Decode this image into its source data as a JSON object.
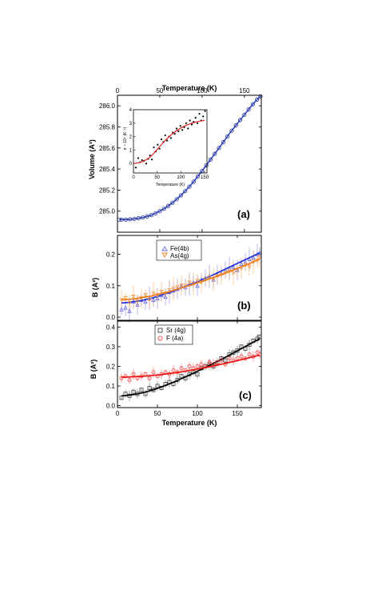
{
  "chart_data": [
    {
      "id": "a",
      "type": "scatter",
      "panel_label": "(a)",
      "xlabel": "Temperature (K)",
      "xaxis_position": "top",
      "ylabel": "Volume (A³)",
      "xlim": [
        0,
        170
      ],
      "ylim": [
        284.8,
        286.1
      ],
      "xticks": [
        0,
        50,
        100,
        150
      ],
      "yticks": [
        285.0,
        285.2,
        285.4,
        285.6,
        285.8,
        286.0
      ],
      "ytick_labels": [
        "285.0",
        "285.2",
        "285.4",
        "285.6",
        "285.8",
        "286.0"
      ],
      "series": [
        {
          "marker": "circle-open",
          "color": "#2b3a8c",
          "fit_color": "#3346c8",
          "x": [
            2,
            5,
            10,
            15,
            20,
            25,
            30,
            35,
            40,
            45,
            50,
            55,
            60,
            65,
            70,
            75,
            80,
            85,
            90,
            95,
            100,
            105,
            110,
            115,
            120,
            125,
            130,
            135,
            140,
            145,
            150,
            155,
            160,
            165,
            169
          ],
          "y": [
            284.92,
            284.92,
            284.92,
            284.923,
            284.927,
            284.933,
            284.94,
            284.95,
            284.963,
            284.98,
            285.0,
            285.023,
            285.05,
            285.08,
            285.113,
            285.15,
            285.19,
            285.233,
            285.28,
            285.33,
            285.382,
            285.435,
            285.49,
            285.545,
            285.6,
            285.655,
            285.71,
            285.764,
            285.815,
            285.865,
            285.915,
            285.965,
            286.015,
            286.06,
            286.09
          ]
        }
      ],
      "inset": {
        "xlabel": "Temperature (K)",
        "ylabel": "α⁻¹·10⁵ (K⁻¹)",
        "xlim": [
          0,
          155
        ],
        "ylim": [
          -0.7,
          4
        ],
        "xticks": [
          0,
          50,
          100,
          150
        ],
        "yticks": [
          0,
          1,
          2,
          3,
          4
        ],
        "points": {
          "x": [
            5,
            10,
            14,
            18,
            22,
            27,
            31,
            35,
            39,
            43,
            47,
            51,
            55,
            59,
            63,
            67,
            71,
            75,
            79,
            83,
            87,
            91,
            95,
            99,
            103,
            107,
            111,
            115,
            119,
            123,
            127,
            131,
            135,
            139,
            143,
            147,
            151
          ],
          "y": [
            -0.3,
            0.4,
            0.1,
            0.25,
            0.2,
            0.0,
            0.35,
            0.6,
            0.3,
            1.2,
            0.9,
            1.4,
            1.1,
            1.8,
            1.6,
            2.1,
            1.7,
            2.0,
            1.9,
            2.3,
            2.2,
            2.6,
            2.4,
            2.8,
            2.5,
            2.7,
            3.0,
            2.6,
            3.2,
            2.9,
            3.1,
            3.4,
            3.0,
            3.7,
            3.2,
            3.5,
            3.9
          ]
        },
        "fit": {
          "x": [
            0,
            10,
            20,
            30,
            40,
            50,
            60,
            70,
            80,
            90,
            100,
            110,
            120,
            130,
            140,
            150
          ],
          "y": [
            0.0,
            0.05,
            0.15,
            0.35,
            0.65,
            1.05,
            1.45,
            1.82,
            2.15,
            2.42,
            2.65,
            2.82,
            2.96,
            3.07,
            3.15,
            3.21
          ]
        }
      }
    },
    {
      "id": "b",
      "type": "scatter",
      "panel_label": "(b)",
      "xlim": [
        0,
        180
      ],
      "ylim": [
        -0.01,
        0.26
      ],
      "xticks": [
        0,
        50,
        100,
        150
      ],
      "yticks": [
        0.0,
        0.1,
        0.2
      ],
      "ytick_labels": [
        "0.0",
        "0.1",
        "0.2"
      ],
      "ylabel": "B (A²)",
      "legend_position": "top-left",
      "series": [
        {
          "name": "Fe(4b)",
          "marker": "triangle-up-open",
          "color": "#6a6ee6",
          "fit_color": "#2233dd",
          "x": [
            5,
            10,
            15,
            20,
            25,
            30,
            35,
            40,
            45,
            50,
            55,
            60,
            65,
            70,
            75,
            80,
            85,
            90,
            95,
            100,
            105,
            110,
            115,
            120,
            125,
            130,
            135,
            140,
            145,
            150,
            155,
            160,
            165,
            170,
            175,
            178
          ],
          "y": [
            0.025,
            0.03,
            0.02,
            0.05,
            0.04,
            0.055,
            0.05,
            0.06,
            0.055,
            0.06,
            0.07,
            0.065,
            0.08,
            0.085,
            0.09,
            0.1,
            0.095,
            0.105,
            0.11,
            0.1,
            0.12,
            0.125,
            0.13,
            0.12,
            0.135,
            0.14,
            0.15,
            0.155,
            0.16,
            0.15,
            0.17,
            0.175,
            0.185,
            0.19,
            0.2,
            0.205
          ],
          "fit_y": [
            0.045,
            0.046,
            0.047,
            0.049,
            0.051,
            0.053,
            0.056,
            0.059,
            0.062,
            0.066,
            0.07,
            0.074,
            0.078,
            0.083,
            0.088,
            0.093,
            0.098,
            0.103,
            0.108,
            0.113,
            0.118,
            0.124,
            0.129,
            0.135,
            0.141,
            0.147,
            0.153,
            0.159,
            0.165,
            0.171,
            0.177,
            0.183,
            0.189,
            0.195,
            0.201,
            0.205
          ]
        },
        {
          "name": "As(4g)",
          "marker": "triangle-down-open",
          "color": "#f5a04a",
          "fit_color": "#f07a18",
          "x": [
            5,
            10,
            15,
            20,
            25,
            30,
            35,
            40,
            45,
            50,
            55,
            60,
            65,
            70,
            75,
            80,
            85,
            90,
            95,
            100,
            105,
            110,
            115,
            120,
            125,
            130,
            135,
            140,
            145,
            150,
            155,
            160,
            165,
            170,
            175,
            178
          ],
          "y": [
            0.055,
            0.06,
            0.045,
            0.065,
            0.05,
            0.06,
            0.07,
            0.055,
            0.075,
            0.07,
            0.08,
            0.075,
            0.085,
            0.09,
            0.095,
            0.1,
            0.1,
            0.11,
            0.105,
            0.115,
            0.11,
            0.12,
            0.125,
            0.12,
            0.13,
            0.135,
            0.14,
            0.145,
            0.14,
            0.15,
            0.155,
            0.165,
            0.16,
            0.175,
            0.18,
            0.19
          ],
          "fit_y": [
            0.055,
            0.056,
            0.057,
            0.058,
            0.06,
            0.062,
            0.064,
            0.066,
            0.069,
            0.072,
            0.075,
            0.078,
            0.081,
            0.085,
            0.089,
            0.093,
            0.097,
            0.101,
            0.105,
            0.109,
            0.113,
            0.117,
            0.122,
            0.126,
            0.131,
            0.135,
            0.14,
            0.145,
            0.15,
            0.155,
            0.16,
            0.165,
            0.17,
            0.176,
            0.181,
            0.185
          ]
        }
      ]
    },
    {
      "id": "c",
      "type": "scatter",
      "panel_label": "(c)",
      "xlabel": "Temperature (K)",
      "ylabel": "B (A²)",
      "xlim": [
        0,
        180
      ],
      "ylim": [
        -0.01,
        0.43
      ],
      "xticks": [
        0,
        50,
        100,
        150
      ],
      "yticks": [
        0.0,
        0.1,
        0.2,
        0.3,
        0.4
      ],
      "ytick_labels": [
        "0.0",
        "0.1",
        "0.2",
        "0.3",
        "0.4"
      ],
      "legend_position": "top-left",
      "series": [
        {
          "name": "Sr (4g)",
          "marker": "square-open",
          "color": "#444444",
          "fit_color": "#000000",
          "x": [
            5,
            10,
            15,
            20,
            25,
            30,
            35,
            40,
            45,
            50,
            55,
            60,
            65,
            70,
            75,
            80,
            85,
            90,
            95,
            100,
            105,
            110,
            115,
            120,
            125,
            130,
            135,
            140,
            145,
            150,
            155,
            160,
            165,
            170,
            175,
            178
          ],
          "y": [
            0.04,
            0.06,
            0.05,
            0.07,
            0.06,
            0.08,
            0.06,
            0.09,
            0.08,
            0.1,
            0.09,
            0.11,
            0.12,
            0.11,
            0.13,
            0.15,
            0.14,
            0.16,
            0.17,
            0.16,
            0.19,
            0.2,
            0.21,
            0.2,
            0.22,
            0.24,
            0.23,
            0.26,
            0.27,
            0.28,
            0.3,
            0.29,
            0.31,
            0.33,
            0.34,
            0.35
          ],
          "fit_y": [
            0.05,
            0.051,
            0.053,
            0.056,
            0.06,
            0.064,
            0.069,
            0.075,
            0.081,
            0.088,
            0.095,
            0.103,
            0.111,
            0.119,
            0.128,
            0.137,
            0.146,
            0.156,
            0.165,
            0.175,
            0.185,
            0.195,
            0.205,
            0.215,
            0.225,
            0.236,
            0.246,
            0.257,
            0.268,
            0.279,
            0.29,
            0.301,
            0.312,
            0.323,
            0.334,
            0.34
          ]
        },
        {
          "name": "F (4a)",
          "marker": "circle-open",
          "color": "#ee4444",
          "fit_color": "#ee1111",
          "x": [
            5,
            10,
            15,
            20,
            25,
            30,
            35,
            40,
            45,
            50,
            55,
            60,
            65,
            70,
            75,
            80,
            85,
            90,
            95,
            100,
            105,
            110,
            115,
            120,
            125,
            130,
            135,
            140,
            145,
            150,
            155,
            160,
            165,
            170,
            175,
            178
          ],
          "y": [
            0.14,
            0.15,
            0.13,
            0.16,
            0.14,
            0.15,
            0.16,
            0.14,
            0.17,
            0.15,
            0.16,
            0.17,
            0.16,
            0.18,
            0.17,
            0.19,
            0.18,
            0.2,
            0.19,
            0.2,
            0.21,
            0.2,
            0.22,
            0.21,
            0.22,
            0.23,
            0.21,
            0.24,
            0.23,
            0.24,
            0.25,
            0.24,
            0.26,
            0.25,
            0.27,
            0.26
          ],
          "fit_y": [
            0.145,
            0.145,
            0.146,
            0.147,
            0.148,
            0.149,
            0.15,
            0.152,
            0.154,
            0.156,
            0.158,
            0.161,
            0.163,
            0.166,
            0.169,
            0.172,
            0.175,
            0.179,
            0.182,
            0.186,
            0.19,
            0.194,
            0.198,
            0.202,
            0.206,
            0.211,
            0.215,
            0.22,
            0.224,
            0.229,
            0.234,
            0.239,
            0.244,
            0.249,
            0.254,
            0.257
          ]
        }
      ]
    }
  ]
}
